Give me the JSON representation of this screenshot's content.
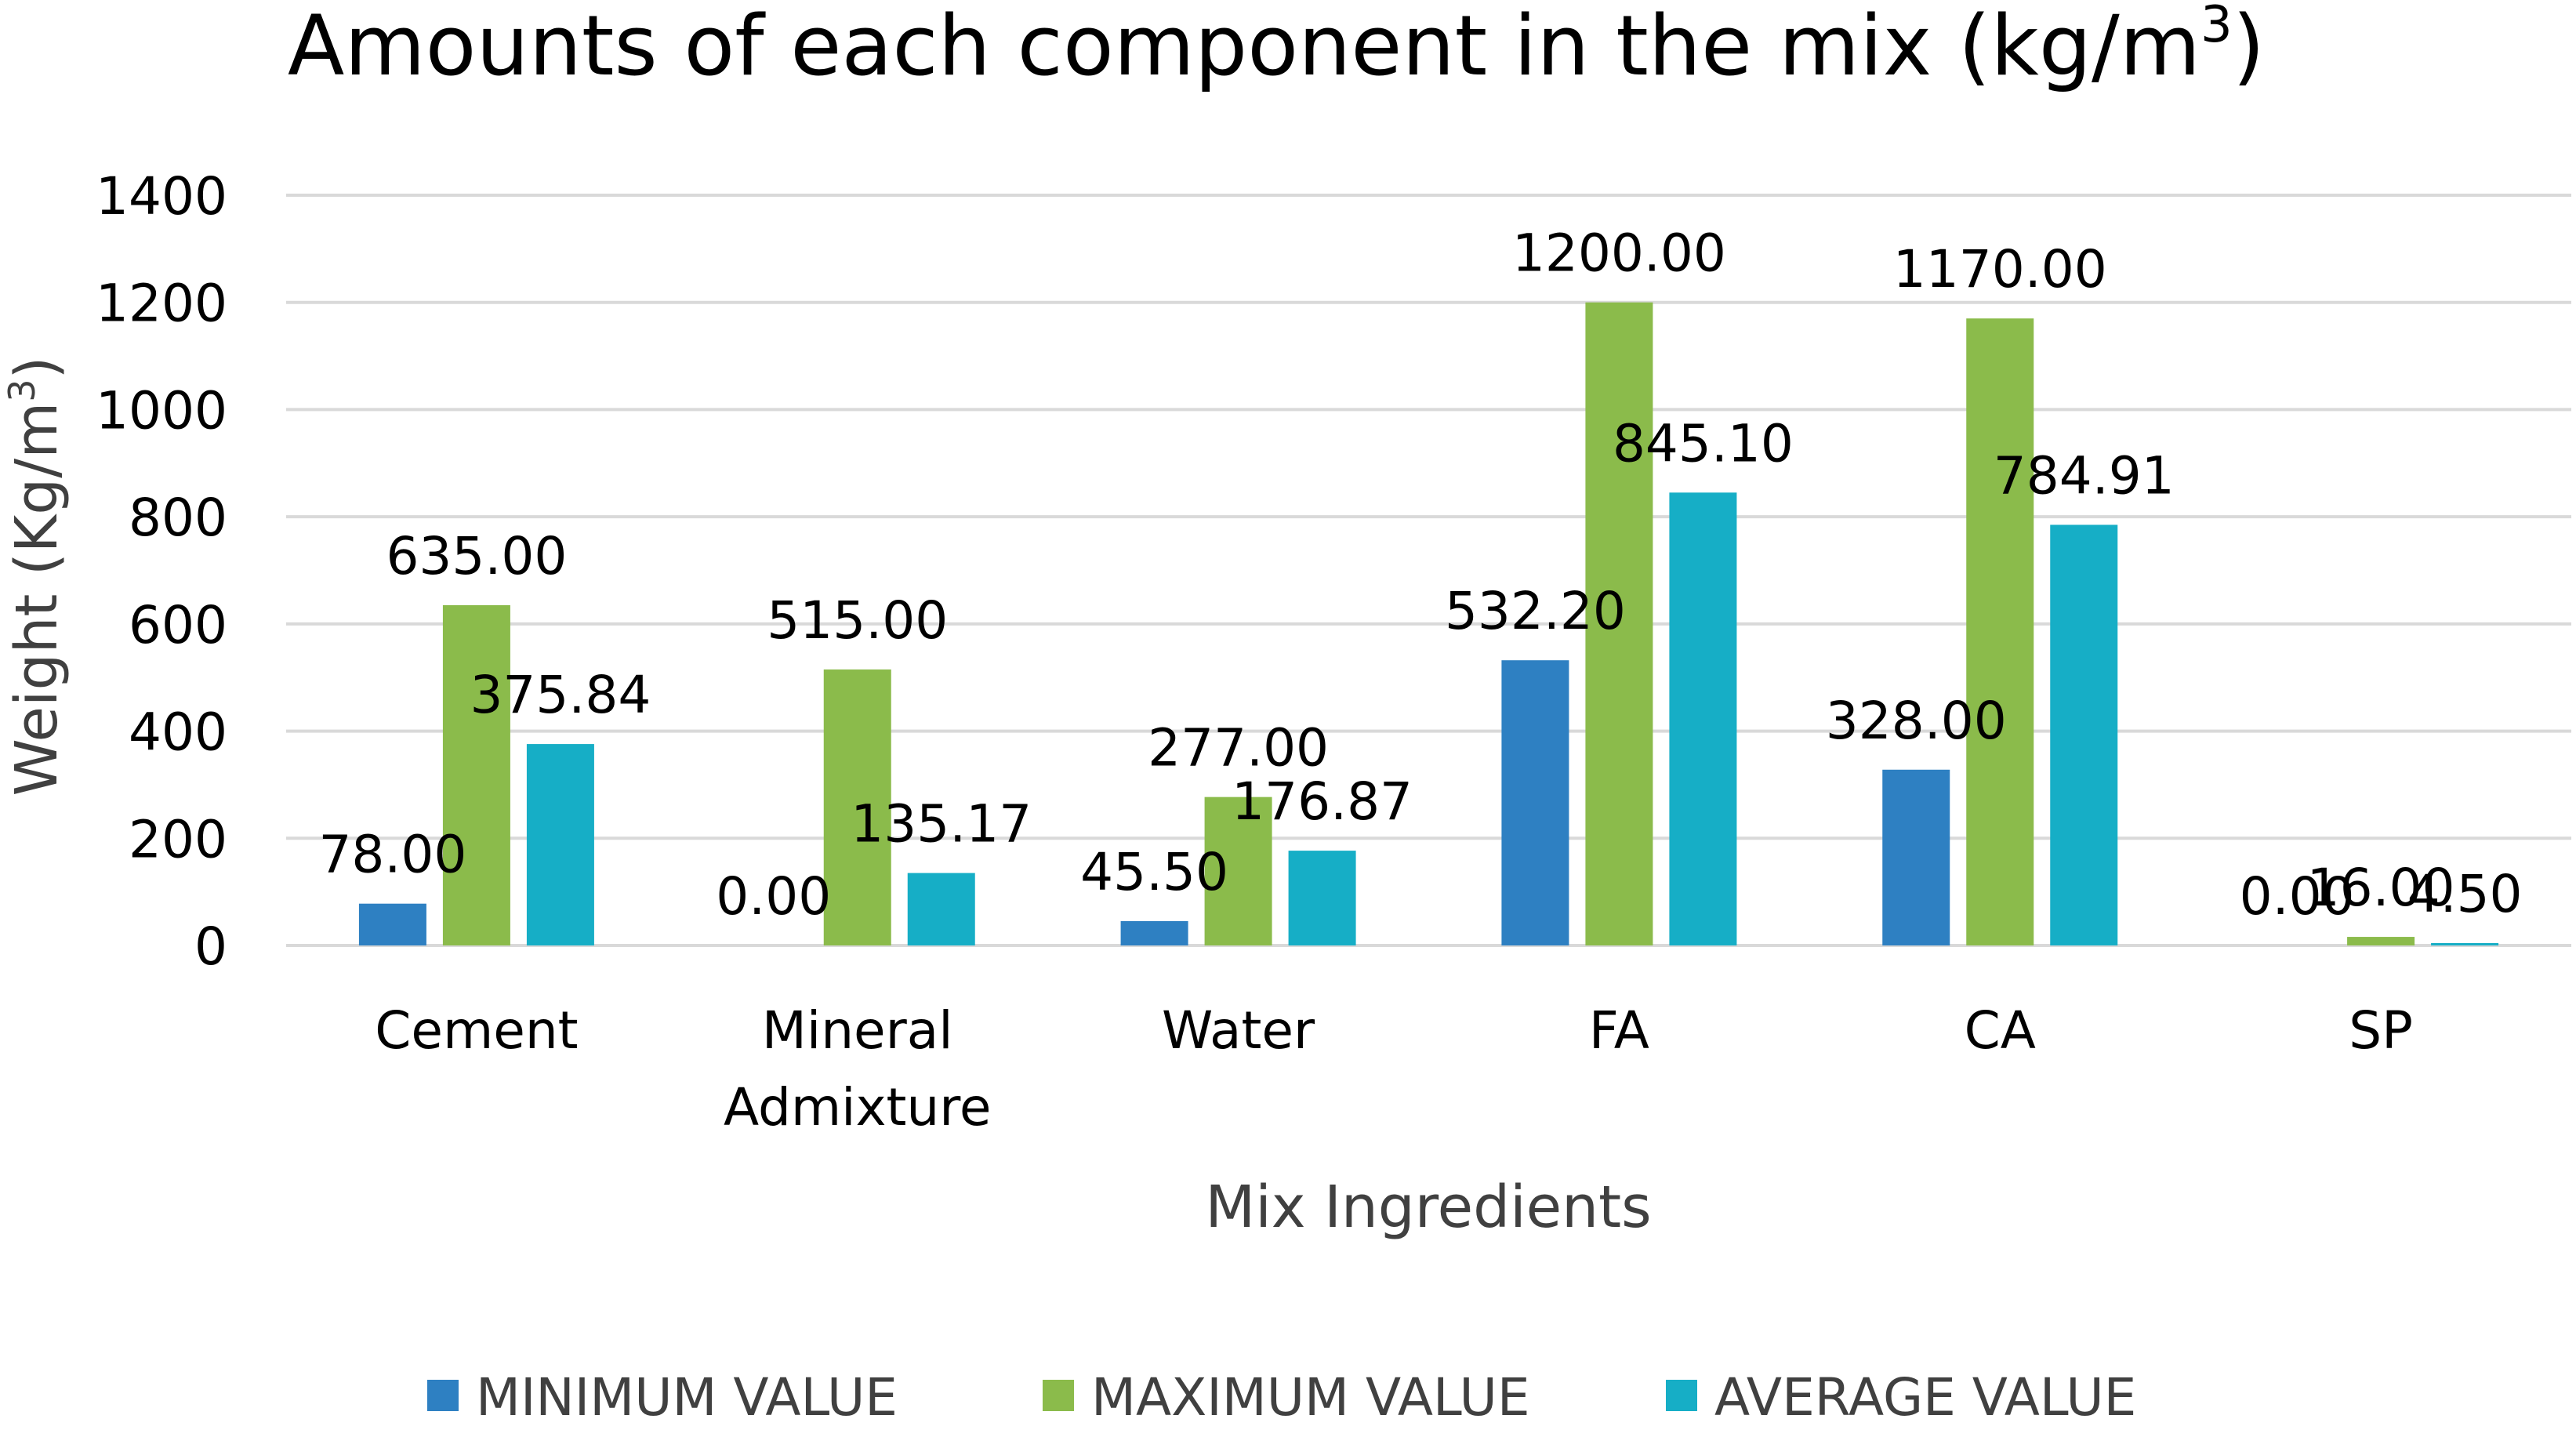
{
  "chart_data": {
    "type": "bar",
    "title_main": "Amounts of each component in the mix (kg/m",
    "title_sup": "3",
    "title_end": ")",
    "xlabel": "Mix Ingredients",
    "ylabel_main": "Weight (Kg/m",
    "ylabel_sup": "3",
    "ylabel_end": ")",
    "ylim": [
      0,
      1400
    ],
    "yticks": [
      0,
      200,
      400,
      600,
      800,
      1000,
      1200,
      1400
    ],
    "grid": true,
    "legend_position": "bottom",
    "categories": [
      [
        "Cement"
      ],
      [
        "Mineral",
        "Admixture"
      ],
      [
        "Water"
      ],
      [
        "FA"
      ],
      [
        "CA"
      ],
      [
        "SP"
      ]
    ],
    "series": [
      {
        "name": "MINIMUM VALUE",
        "color": "#2e80c2",
        "values": [
          78.0,
          0.0,
          45.5,
          532.2,
          328.0,
          0.0
        ],
        "labels": [
          "78.00",
          "0.00",
          "45.50",
          "532.20",
          "328.00",
          "0.00"
        ]
      },
      {
        "name": "MAXIMUM VALUE",
        "color": "#8bbb4b",
        "values": [
          635.0,
          515.0,
          277.0,
          1200.0,
          1170.0,
          16.0
        ],
        "labels": [
          "635.00",
          "515.00",
          "277.00",
          "1200.00",
          "1170.00",
          "16.00"
        ]
      },
      {
        "name": "AVERAGE VALUE",
        "color": "#16aec6",
        "values": [
          375.84,
          135.17,
          176.87,
          845.1,
          784.91,
          4.5
        ],
        "labels": [
          "375.84",
          "135.17",
          "176.87",
          "845.10",
          "784.91",
          "4.50"
        ]
      }
    ]
  }
}
